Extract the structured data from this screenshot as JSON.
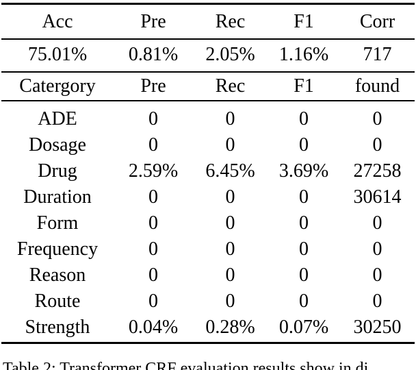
{
  "colors": {
    "background": "#ffffff",
    "text": "#000000",
    "rule": "#000000"
  },
  "table": {
    "summary_header": [
      "Acc",
      "Pre",
      "Rec",
      "F1",
      "Corr"
    ],
    "summary_values": [
      "75.01%",
      "0.81%",
      "2.05%",
      "1.16%",
      "717"
    ],
    "category_header": [
      "Catergory",
      "Pre",
      "Rec",
      "F1",
      "found"
    ],
    "body_rows": [
      [
        "ADE",
        "0",
        "0",
        "0",
        "0"
      ],
      [
        "Dosage",
        "0",
        "0",
        "0",
        "0"
      ],
      [
        "Drug",
        "2.59%",
        "6.45%",
        "3.69%",
        "27258"
      ],
      [
        "Duration",
        "0",
        "0",
        "0",
        "30614"
      ],
      [
        "Form",
        "0",
        "0",
        "0",
        "0"
      ],
      [
        "Frequency",
        "0",
        "0",
        "0",
        "0"
      ],
      [
        "Reason",
        "0",
        "0",
        "0",
        "0"
      ],
      [
        "Route",
        "0",
        "0",
        "0",
        "0"
      ],
      [
        "Strength",
        "0.04%",
        "0.28%",
        "0.07%",
        "30250"
      ]
    ]
  },
  "caption": "Table 2: Transformer CRF evaluation results show in di",
  "chart_data": {
    "type": "table",
    "title": "Table 2: Transformer CRF evaluation results",
    "overall": {
      "columns": [
        "Acc",
        "Pre",
        "Rec",
        "F1",
        "Corr"
      ],
      "values": [
        "75.01%",
        "0.81%",
        "2.05%",
        "1.16%",
        "717"
      ]
    },
    "per_category": {
      "columns": [
        "Catergory",
        "Pre",
        "Rec",
        "F1",
        "found"
      ],
      "rows": [
        [
          "ADE",
          "0",
          "0",
          "0",
          "0"
        ],
        [
          "Dosage",
          "0",
          "0",
          "0",
          "0"
        ],
        [
          "Drug",
          "2.59%",
          "6.45%",
          "3.69%",
          "27258"
        ],
        [
          "Duration",
          "0",
          "0",
          "0",
          "30614"
        ],
        [
          "Form",
          "0",
          "0",
          "0",
          "0"
        ],
        [
          "Frequency",
          "0",
          "0",
          "0",
          "0"
        ],
        [
          "Reason",
          "0",
          "0",
          "0",
          "0"
        ],
        [
          "Route",
          "0",
          "0",
          "0",
          "0"
        ],
        [
          "Strength",
          "0.04%",
          "0.28%",
          "0.07%",
          "30250"
        ]
      ]
    }
  }
}
